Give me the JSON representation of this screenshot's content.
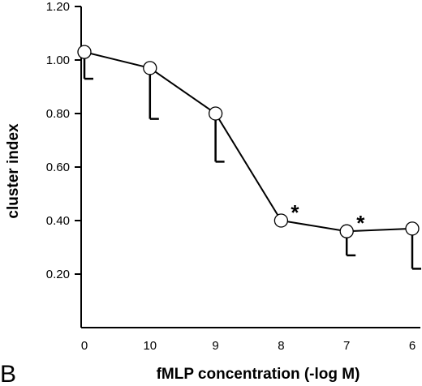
{
  "panel_label": "B",
  "chart_data": {
    "type": "line",
    "title": "",
    "xlabel": "fMLP concentration (-log M)",
    "ylabel": "cluster index",
    "categories": [
      "0",
      "10",
      "9",
      "8",
      "7",
      "6"
    ],
    "ylim": [
      0,
      1.2
    ],
    "yticks": [
      "0.20",
      "0.40",
      "0.60",
      "0.80",
      "1.00",
      "1.20"
    ],
    "grid": false,
    "legend": "none",
    "series": [
      {
        "values": [
          1.03,
          0.97,
          0.8,
          0.4,
          0.36,
          0.37
        ],
        "error_low": [
          0.93,
          0.78,
          0.62,
          0.4,
          0.27,
          0.22
        ],
        "significant": [
          "",
          "",
          "",
          "*",
          "*",
          "*"
        ]
      }
    ]
  }
}
